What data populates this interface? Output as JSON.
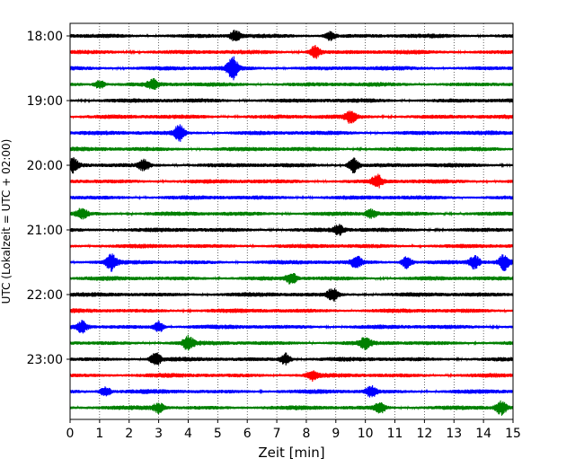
{
  "chart_data": {
    "type": "line",
    "subtype": "seismogram-helicorder",
    "xlabel": "Zeit  [min]",
    "ylabel": "UTC (Lokalzeit = UTC + 02:00)",
    "xlim": [
      0,
      15
    ],
    "x_ticks": [
      "0",
      "1",
      "2",
      "3",
      "4",
      "5",
      "6",
      "7",
      "8",
      "9",
      "10",
      "11",
      "12",
      "13",
      "14",
      "15"
    ],
    "y_ticks": [
      {
        "label": "18:00",
        "trace": 0
      },
      {
        "label": "19:00",
        "trace": 4
      },
      {
        "label": "20:00",
        "trace": 8
      },
      {
        "label": "21:00",
        "trace": 12
      },
      {
        "label": "22:00",
        "trace": 16
      },
      {
        "label": "23:00",
        "trace": 20
      }
    ],
    "trace_minutes": 15,
    "trace_count": 24,
    "start_time": "18:00",
    "colors": [
      "#000000",
      "#ff0000",
      "#0000ff",
      "#008000"
    ],
    "vertical_grid": "dotted",
    "events": [
      {
        "trace": 0,
        "minute": 5.6,
        "amp": 1.0
      },
      {
        "trace": 0,
        "minute": 8.8,
        "amp": 0.8
      },
      {
        "trace": 1,
        "minute": 8.3,
        "amp": 1.2
      },
      {
        "trace": 2,
        "minute": 5.5,
        "amp": 2.2
      },
      {
        "trace": 3,
        "minute": 1.0,
        "amp": 0.8
      },
      {
        "trace": 3,
        "minute": 2.8,
        "amp": 0.9
      },
      {
        "trace": 5,
        "minute": 9.5,
        "amp": 1.1
      },
      {
        "trace": 6,
        "minute": 3.7,
        "amp": 1.6
      },
      {
        "trace": 8,
        "minute": 0.1,
        "amp": 1.3
      },
      {
        "trace": 8,
        "minute": 2.5,
        "amp": 1.0
      },
      {
        "trace": 8,
        "minute": 9.6,
        "amp": 1.4
      },
      {
        "trace": 9,
        "minute": 10.4,
        "amp": 1.2
      },
      {
        "trace": 11,
        "minute": 0.4,
        "amp": 1.0
      },
      {
        "trace": 11,
        "minute": 10.2,
        "amp": 0.8
      },
      {
        "trace": 12,
        "minute": 9.1,
        "amp": 0.9
      },
      {
        "trace": 14,
        "minute": 1.4,
        "amp": 1.6
      },
      {
        "trace": 14,
        "minute": 9.7,
        "amp": 1.1
      },
      {
        "trace": 14,
        "minute": 11.4,
        "amp": 1.2
      },
      {
        "trace": 14,
        "minute": 13.7,
        "amp": 1.2
      },
      {
        "trace": 14,
        "minute": 14.7,
        "amp": 1.4
      },
      {
        "trace": 15,
        "minute": 7.5,
        "amp": 1.0
      },
      {
        "trace": 16,
        "minute": 8.9,
        "amp": 1.2
      },
      {
        "trace": 18,
        "minute": 0.4,
        "amp": 1.1
      },
      {
        "trace": 18,
        "minute": 3.0,
        "amp": 1.0
      },
      {
        "trace": 19,
        "minute": 4.0,
        "amp": 1.3
      },
      {
        "trace": 19,
        "minute": 10.0,
        "amp": 1.2
      },
      {
        "trace": 20,
        "minute": 2.9,
        "amp": 1.2
      },
      {
        "trace": 20,
        "minute": 7.3,
        "amp": 1.1
      },
      {
        "trace": 21,
        "minute": 8.2,
        "amp": 0.9
      },
      {
        "trace": 22,
        "minute": 1.2,
        "amp": 0.9
      },
      {
        "trace": 22,
        "minute": 10.2,
        "amp": 1.0
      },
      {
        "trace": 23,
        "minute": 3.0,
        "amp": 0.9
      },
      {
        "trace": 23,
        "minute": 10.5,
        "amp": 1.0
      },
      {
        "trace": 23,
        "minute": 14.6,
        "amp": 1.3
      }
    ]
  }
}
